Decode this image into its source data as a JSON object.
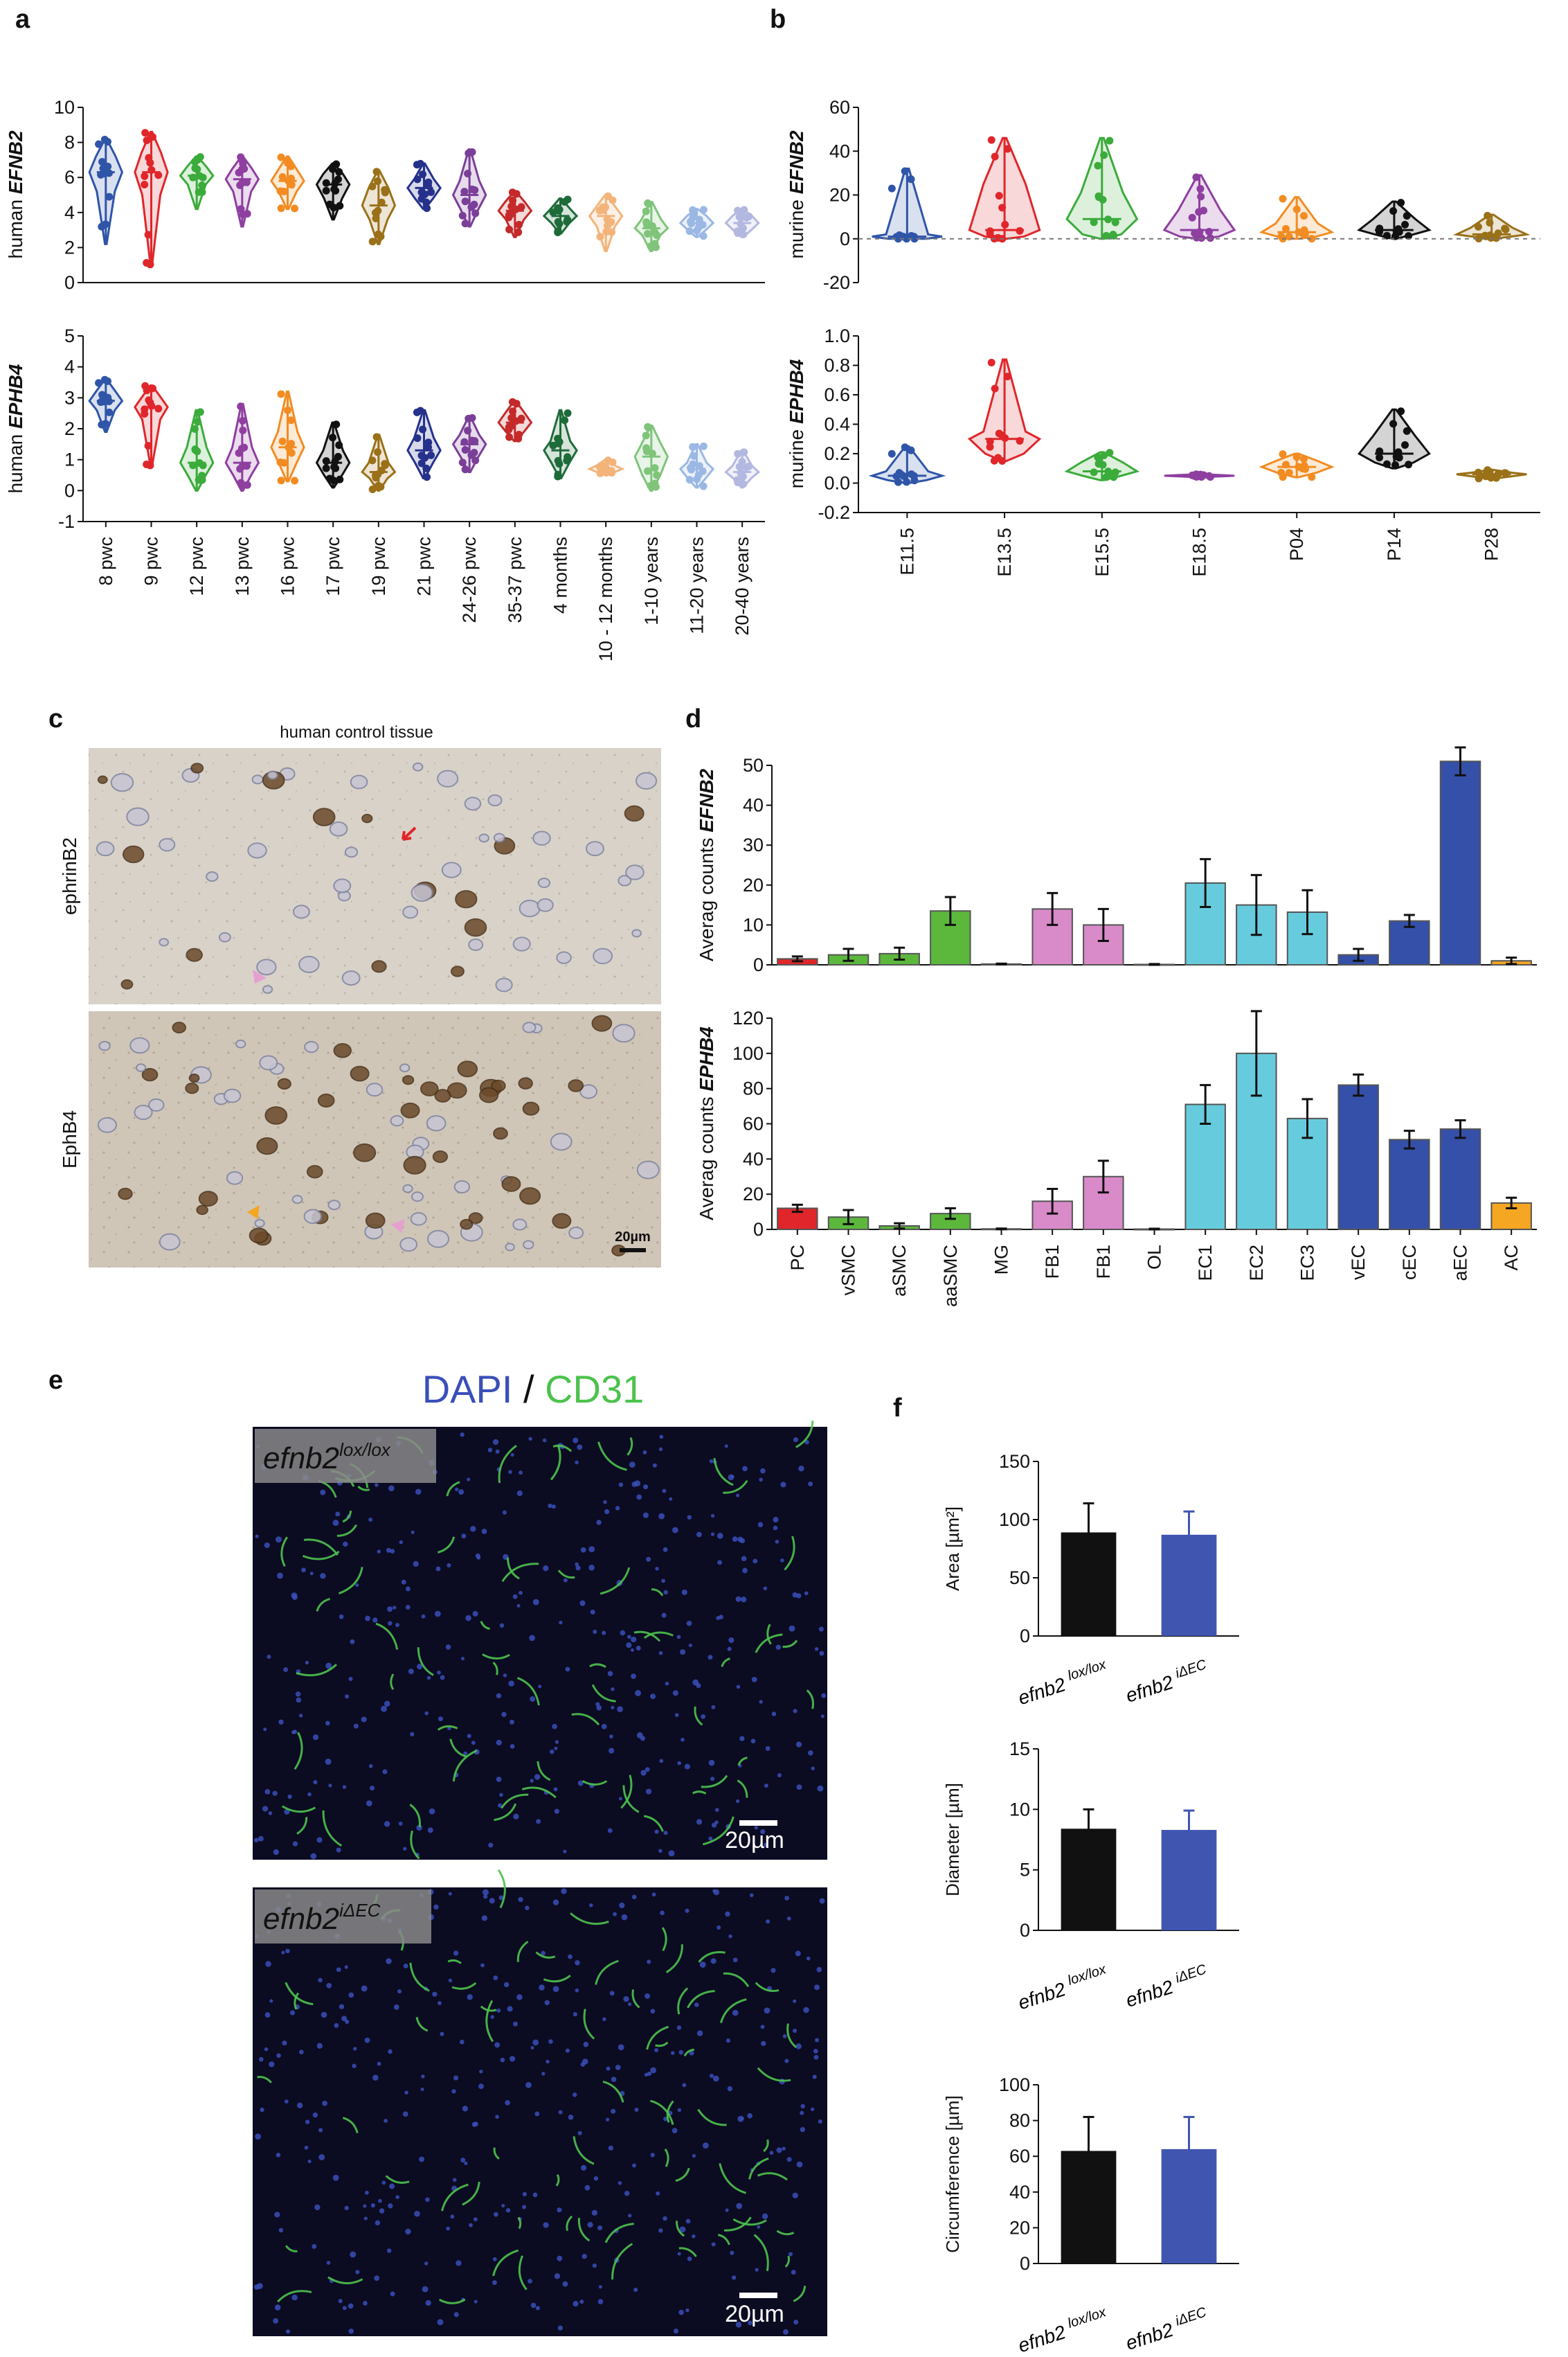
{
  "panels": {
    "a": "a",
    "b": "b",
    "c": "c",
    "d": "d",
    "e": "e",
    "f": "f"
  },
  "chart_data": [
    {
      "id": "a-top",
      "type": "violin",
      "ylabel_prefix": "human ",
      "ylabel_gene": "EFNB2",
      "ylim": [
        0,
        10
      ],
      "yticks": [
        0,
        2,
        4,
        6,
        8,
        10
      ],
      "categories": [
        "8 pwc",
        "9 pwc",
        "12 pwc",
        "13 pwc",
        "16 pwc",
        "17 pwc",
        "19 pwc",
        "21 pwc",
        "24-26 pwc",
        "35-37 pwc",
        "4 months",
        "10 - 12 months",
        "1-10 years",
        "11-20 years",
        "20-40 years"
      ],
      "colors": [
        "#2f55a8",
        "#e0262a",
        "#3bab3b",
        "#8e3fa0",
        "#f28c22",
        "#111111",
        "#9a7018",
        "#25318a",
        "#7a3f98",
        "#c42a2a",
        "#1e6b3a",
        "#f3b47a",
        "#7fc47a",
        "#9bb8e4",
        "#b3b8e0"
      ],
      "min": [
        2.2,
        1.0,
        4.2,
        3.2,
        4.2,
        3.6,
        2.2,
        4.2,
        3.2,
        2.6,
        2.8,
        1.8,
        1.8,
        2.6,
        2.6
      ],
      "q1": [
        5.2,
        5.0,
        5.6,
        5.2,
        5.2,
        4.8,
        3.6,
        4.8,
        4.2,
        3.6,
        3.4,
        3.2,
        2.7,
        3.0,
        3.0
      ],
      "median": [
        6.3,
        6.3,
        6.1,
        5.9,
        5.8,
        5.6,
        4.4,
        5.4,
        5.0,
        4.1,
        3.8,
        3.8,
        3.1,
        3.4,
        3.4
      ],
      "q3": [
        7.2,
        7.4,
        6.6,
        6.5,
        6.4,
        6.2,
        5.4,
        5.9,
        5.8,
        4.6,
        4.2,
        4.3,
        3.6,
        3.8,
        3.8
      ],
      "max": [
        8.2,
        8.6,
        7.2,
        7.2,
        7.2,
        6.8,
        6.4,
        6.8,
        7.6,
        5.2,
        4.8,
        5.0,
        4.6,
        4.2,
        4.2
      ]
    },
    {
      "id": "a-bottom",
      "type": "violin",
      "ylabel_prefix": "human ",
      "ylabel_gene": "EPHB4",
      "ylim": [
        -1,
        5
      ],
      "yticks": [
        -1,
        0,
        1,
        2,
        3,
        4,
        5
      ],
      "categories": [
        "8 pwc",
        "9 pwc",
        "12 pwc",
        "13 pwc",
        "16 pwc",
        "17 pwc",
        "19 pwc",
        "21 pwc",
        "24-26 pwc",
        "35-37 pwc",
        "4 months",
        "10 - 12 months",
        "1-10 years",
        "11-20 years",
        "20-40 years"
      ],
      "colors": [
        "#2f55a8",
        "#e0262a",
        "#3bab3b",
        "#8e3fa0",
        "#f28c22",
        "#111111",
        "#9a7018",
        "#25318a",
        "#7a3f98",
        "#c42a2a",
        "#1e6b3a",
        "#f3b47a",
        "#7fc47a",
        "#9bb8e4",
        "#b3b8e0"
      ],
      "min": [
        1.9,
        0.8,
        0.0,
        0.0,
        0.3,
        0.1,
        0.0,
        0.4,
        0.6,
        1.6,
        0.4,
        0.5,
        0.0,
        0.1,
        0.1
      ],
      "q1": [
        2.6,
        2.3,
        0.5,
        0.5,
        0.9,
        0.5,
        0.4,
        0.9,
        1.1,
        1.9,
        0.9,
        0.6,
        0.5,
        0.4,
        0.4
      ],
      "median": [
        2.9,
        2.7,
        0.9,
        0.9,
        1.4,
        0.9,
        0.6,
        1.3,
        1.5,
        2.2,
        1.3,
        0.7,
        1.1,
        0.7,
        0.6
      ],
      "q3": [
        3.2,
        3.0,
        1.4,
        1.4,
        1.9,
        1.3,
        0.9,
        1.7,
        1.8,
        2.5,
        1.6,
        0.8,
        1.5,
        0.9,
        0.8
      ],
      "max": [
        3.6,
        3.4,
        2.6,
        2.8,
        3.2,
        2.2,
        1.8,
        2.6,
        2.4,
        2.9,
        2.6,
        1.0,
        2.1,
        1.5,
        1.3
      ]
    },
    {
      "id": "b-top",
      "type": "violin",
      "ylabel_prefix": "murine ",
      "ylabel_gene": "EFNB2",
      "ylim": [
        -20,
        60
      ],
      "yticks": [
        -20,
        0,
        20,
        40,
        60
      ],
      "categories": [
        "E11.5",
        "E13.5",
        "E15.5",
        "E18.5",
        "P04",
        "P14",
        "P28"
      ],
      "colors": [
        "#2f55a8",
        "#e0262a",
        "#3bab3b",
        "#8e3fa0",
        "#f28c22",
        "#111111",
        "#9a7018"
      ],
      "min": [
        0,
        0,
        0,
        0,
        0,
        0,
        0
      ],
      "q1": [
        0,
        1,
        2,
        1,
        1,
        2,
        1
      ],
      "median": [
        1,
        4,
        9,
        4,
        3,
        4,
        2
      ],
      "q3": [
        2,
        25,
        21,
        13,
        7,
        9,
        5
      ],
      "max": [
        32,
        46,
        46,
        29,
        19,
        17,
        11
      ]
    },
    {
      "id": "b-bottom",
      "type": "violin",
      "ylabel_prefix": "murine ",
      "ylabel_gene": "EPHB4",
      "ylim": [
        -0.2,
        1.0
      ],
      "yticks": [
        -0.2,
        0.0,
        0.2,
        0.4,
        0.6,
        0.8,
        1.0
      ],
      "categories": [
        "E11.5",
        "E13.5",
        "E15.5",
        "E18.5",
        "P04",
        "P14",
        "P28"
      ],
      "colors": [
        "#2f55a8",
        "#e0262a",
        "#3bab3b",
        "#8e3fa0",
        "#f28c22",
        "#111111",
        "#9a7018"
      ],
      "min": [
        0.0,
        0.15,
        0.02,
        0.04,
        0.04,
        0.1,
        0.03
      ],
      "q1": [
        0.02,
        0.2,
        0.05,
        0.045,
        0.07,
        0.14,
        0.045
      ],
      "median": [
        0.05,
        0.3,
        0.08,
        0.05,
        0.11,
        0.2,
        0.06
      ],
      "q3": [
        0.08,
        0.35,
        0.14,
        0.055,
        0.15,
        0.32,
        0.07
      ],
      "max": [
        0.25,
        0.84,
        0.21,
        0.06,
        0.2,
        0.5,
        0.09
      ]
    },
    {
      "id": "d-top",
      "type": "bar",
      "ylabel_prefix": "Averag counts ",
      "ylabel_gene": "EFNB2",
      "ylim": [
        0,
        50
      ],
      "yticks": [
        0,
        10,
        20,
        30,
        40,
        50
      ],
      "categories": [
        "PC",
        "vSMC",
        "aSMC",
        "aaSMC",
        "MG",
        "FB1",
        "FB1",
        "OL",
        "EC1",
        "EC2",
        "EC3",
        "vEC",
        "cEC",
        "aEC",
        "AC"
      ],
      "colors": [
        "#e0262a",
        "#5cb83c",
        "#5cb83c",
        "#5cb83c",
        "#5cb83c",
        "#d98ac8",
        "#d98ac8",
        "#aaaaaa",
        "#66ccdd",
        "#66ccdd",
        "#66ccdd",
        "#3550a8",
        "#3550a8",
        "#3550a8",
        "#f5a623"
      ],
      "values": [
        1.5,
        2.5,
        2.8,
        13.5,
        0.2,
        14,
        10,
        0.1,
        20.5,
        15,
        13.2,
        2.5,
        11,
        51,
        1
      ],
      "errors": [
        0.6,
        1.5,
        1.5,
        3.5,
        0.1,
        4,
        4,
        0.1,
        6,
        7.5,
        5.5,
        1.5,
        1.5,
        3.5,
        0.8
      ]
    },
    {
      "id": "d-bottom",
      "type": "bar",
      "ylabel_prefix": "Averag counts ",
      "ylabel_gene": "EPHB4",
      "ylim": [
        0,
        120
      ],
      "yticks": [
        0,
        20,
        40,
        60,
        80,
        100,
        120
      ],
      "categories": [
        "PC",
        "vSMC",
        "aSMC",
        "aaSMC",
        "MG",
        "FB1",
        "FB1",
        "OL",
        "EC1",
        "EC2",
        "EC3",
        "vEC",
        "cEC",
        "aEC",
        "AC"
      ],
      "colors": [
        "#e0262a",
        "#5cb83c",
        "#5cb83c",
        "#5cb83c",
        "#5cb83c",
        "#d98ac8",
        "#d98ac8",
        "#aaaaaa",
        "#66ccdd",
        "#66ccdd",
        "#66ccdd",
        "#3550a8",
        "#3550a8",
        "#3550a8",
        "#f5a623"
      ],
      "values": [
        12,
        7,
        2,
        9,
        0.3,
        16,
        30,
        0.2,
        71,
        100,
        63,
        82,
        51,
        57,
        15
      ],
      "errors": [
        2,
        4,
        1.5,
        3,
        0.2,
        7,
        9,
        0.2,
        11,
        24,
        11,
        6,
        5,
        5,
        3
      ]
    },
    {
      "id": "f-area",
      "type": "bar",
      "ylabel": "Area [µm²]",
      "ylim": [
        0,
        150
      ],
      "yticks": [
        0,
        50,
        100,
        150
      ],
      "categories": [
        "efnb2 lox/lox",
        "efnb2 iΔEC"
      ],
      "colors": [
        "#111111",
        "#4055b0"
      ],
      "values": [
        89,
        87
      ],
      "errors": [
        25,
        20
      ]
    },
    {
      "id": "f-diameter",
      "type": "bar",
      "ylabel": "Diameter [µm]",
      "ylim": [
        0,
        15
      ],
      "yticks": [
        0,
        5,
        10,
        15
      ],
      "categories": [
        "efnb2 lox/lox",
        "efnb2 iΔEC"
      ],
      "colors": [
        "#111111",
        "#4055b0"
      ],
      "values": [
        8.4,
        8.3
      ],
      "errors": [
        1.6,
        1.6
      ]
    },
    {
      "id": "f-circ",
      "type": "bar",
      "ylabel": "Circumference [µm]",
      "ylim": [
        0,
        100
      ],
      "yticks": [
        0,
        20,
        40,
        60,
        80,
        100
      ],
      "categories": [
        "efnb2 lox/lox",
        "efnb2 iΔEC"
      ],
      "colors": [
        "#111111",
        "#4055b0"
      ],
      "values": [
        63,
        64
      ],
      "errors": [
        19,
        18
      ]
    }
  ],
  "panel_c": {
    "title": "human control tissue",
    "row1_label": "ephrinB2",
    "row2_label": "EphB4",
    "scale": "20µm"
  },
  "panel_e": {
    "title_dapi": "DAPI",
    "title_sep": " / ",
    "title_cd31": "CD31",
    "img1_base": "efnb2",
    "img1_sup": "lox/lox",
    "img2_base": "efnb2",
    "img2_sup": "iΔEC",
    "scale1": "20µm",
    "scale2": "20µm",
    "dapi_color": "#3a4fb8",
    "cd31_color": "#4cc24c"
  },
  "panel_f_labels": {
    "cat1_base": "efnb2",
    "cat1_sup": "lox/lox",
    "cat2_base": "efnb2",
    "cat2_sup": "iΔEC"
  }
}
